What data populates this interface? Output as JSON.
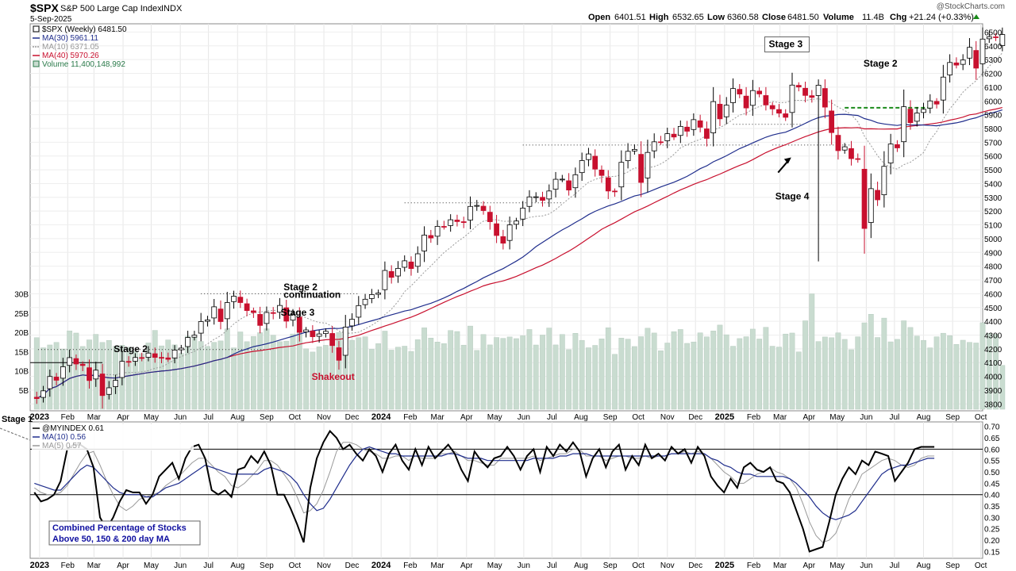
{
  "header": {
    "symbol": "$SPX",
    "name": "S&P 500 Large Cap Index",
    "exchange": "INDX",
    "date": "5-Sep-2025",
    "watermark": "@StockCharts.com",
    "open_label": "Open",
    "open": "6401.51",
    "high_label": "High",
    "high": "6532.65",
    "low_label": "Low",
    "low": "6360.58",
    "close_label": "Close",
    "close": "6481.50",
    "volume_label": "Volume",
    "volume": "11.4B",
    "chg_label": "Chg",
    "chg": "+21.24 (+0.33%)"
  },
  "colors": {
    "up": "#ffffff",
    "down": "#c8102e",
    "candle_edge": "#000000",
    "ma30": "#1f2d8c",
    "ma10": "#999999",
    "ma40": "#c8102e",
    "volume": "#c9dcd0",
    "stage2_line": "#1a8a1a",
    "ind_main": "#000000",
    "ind_ma10": "#1f2d8c",
    "ind_ma5": "#999999",
    "note_text": "#1010a0"
  },
  "chart_data": [
    {
      "type": "candlestick",
      "title": "$SPX S&P 500 Large Cap Index INDX",
      "legend": [
        {
          "label": "$SPX (Weekly) 6481.50",
          "color": "#000000"
        },
        {
          "label": "MA(30) 5961.11",
          "color": "#1f2d8c"
        },
        {
          "label": "MA(10) 6371.05",
          "color": "#999999"
        },
        {
          "label": "MA(40) 5970.26",
          "color": "#c8102e"
        },
        {
          "label": "Volume 11,400,148,992",
          "color": "#2a7a4a"
        }
      ],
      "legend_position": "top-left",
      "x_range": [
        "2022-12-23",
        "2025-10-03"
      ],
      "x_ticks": [
        {
          "label": "2023",
          "date": "2023-01-02",
          "bold": true
        },
        {
          "label": "Feb",
          "date": "2023-02-01"
        },
        {
          "label": "Mar",
          "date": "2023-03-01"
        },
        {
          "label": "Apr",
          "date": "2023-04-01"
        },
        {
          "label": "May",
          "date": "2023-05-01"
        },
        {
          "label": "Jun",
          "date": "2023-06-01"
        },
        {
          "label": "Jul",
          "date": "2023-07-01"
        },
        {
          "label": "Aug",
          "date": "2023-08-01"
        },
        {
          "label": "Sep",
          "date": "2023-09-01"
        },
        {
          "label": "Oct",
          "date": "2023-10-01"
        },
        {
          "label": "Nov",
          "date": "2023-11-01"
        },
        {
          "label": "Dec",
          "date": "2023-12-01"
        },
        {
          "label": "2024",
          "date": "2024-01-01",
          "bold": true
        },
        {
          "label": "Feb",
          "date": "2024-02-01"
        },
        {
          "label": "Mar",
          "date": "2024-03-01"
        },
        {
          "label": "Apr",
          "date": "2024-04-01"
        },
        {
          "label": "May",
          "date": "2024-05-01"
        },
        {
          "label": "Jun",
          "date": "2024-06-01"
        },
        {
          "label": "Jul",
          "date": "2024-07-01"
        },
        {
          "label": "Aug",
          "date": "2024-08-01"
        },
        {
          "label": "Sep",
          "date": "2024-09-01"
        },
        {
          "label": "Oct",
          "date": "2024-10-01"
        },
        {
          "label": "Nov",
          "date": "2024-11-01"
        },
        {
          "label": "Dec",
          "date": "2024-12-01"
        },
        {
          "label": "2025",
          "date": "2025-01-01",
          "bold": true
        },
        {
          "label": "Feb",
          "date": "2025-02-01"
        },
        {
          "label": "Mar",
          "date": "2025-03-01"
        },
        {
          "label": "Apr",
          "date": "2025-04-01"
        },
        {
          "label": "May",
          "date": "2025-05-01"
        },
        {
          "label": "Jun",
          "date": "2025-06-01"
        },
        {
          "label": "Jul",
          "date": "2025-07-01"
        },
        {
          "label": "Aug",
          "date": "2025-08-01"
        },
        {
          "label": "Sep",
          "date": "2025-09-01"
        },
        {
          "label": "Oct",
          "date": "2025-10-01"
        }
      ],
      "y_range": [
        3750,
        6560
      ],
      "y_ticks": [
        3800,
        3900,
        4000,
        4100,
        4200,
        4300,
        4400,
        4500,
        4600,
        4700,
        4800,
        4900,
        5000,
        5100,
        5200,
        5300,
        5400,
        5500,
        5600,
        5700,
        5800,
        5900,
        6000,
        6100,
        6200,
        6300,
        6400,
        6500
      ],
      "volume_ticks": [
        {
          "label": "5B",
          "value": 5
        },
        {
          "label": "10B",
          "value": 10
        },
        {
          "label": "15B",
          "value": 15
        },
        {
          "label": "20B",
          "value": 20
        },
        {
          "label": "25B",
          "value": 25
        },
        {
          "label": "30B",
          "value": 30
        }
      ],
      "volume_max": 33,
      "x_start": "2022-12-30",
      "x_step_days": 7,
      "close": [
        3839,
        3895,
        3999,
        3972,
        4070,
        4136,
        4090,
        4079,
        3970,
        4045,
        3861,
        3917,
        3971,
        4109,
        4105,
        4137,
        4133,
        4169,
        4138,
        4136,
        4124,
        4191,
        4205,
        4282,
        4299,
        4398,
        4410,
        4505,
        4398,
        4536,
        4582,
        4536,
        4478,
        4464,
        4370,
        4464,
        4457,
        4515,
        4401,
        4450,
        4320,
        4337,
        4288,
        4308,
        4327,
        4224,
        4117,
        4358,
        4415,
        4514,
        4560,
        4594,
        4605,
        4769,
        4719,
        4784,
        4839,
        4783,
        4890,
        5026,
        5005,
        5089,
        5088,
        5137,
        5124,
        5117,
        5234,
        5241,
        5204,
        5123,
        5023,
        4967,
        5100,
        5128,
        5222,
        5303,
        5304,
        5278,
        5346,
        5431,
        5432,
        5353,
        5464,
        5567,
        5615,
        5505,
        5459,
        5346,
        5344,
        5554,
        5634,
        5648,
        5408,
        5626,
        5703,
        5702,
        5762,
        5738,
        5815,
        5780,
        5864,
        5809,
        5728,
        5995,
        5870,
        5969,
        6090,
        6050,
        5949,
        6075,
        6051,
        5971,
        5942,
        5911,
        5881,
        6115,
        6101,
        6040,
        6026,
        6114,
        5955,
        5770,
        5639,
        5667,
        5581,
        5580,
        5074,
        5363,
        5282,
        5525,
        5687,
        5659,
        5958,
        5842,
        5912,
        5939,
        6000,
        5977,
        6173,
        6279,
        6260,
        6297,
        6389,
        6238,
        6449,
        6466,
        6460,
        6482
      ],
      "ma30_last": 5961.11,
      "ma10_last": 6371.05,
      "ma40_last": 5970.26,
      "annotations": [
        {
          "text": "Stage 2",
          "date": "2023-03-22",
          "value": 4175
        },
        {
          "text": "Stage 2",
          "date": "2023-09-19",
          "value": 4625
        },
        {
          "text": "continuation",
          "date": "2023-09-19",
          "value": 4570
        },
        {
          "text": "Stage 3",
          "date": "2023-09-16",
          "value": 4440
        },
        {
          "text": "Shakeout",
          "date": "2023-10-19",
          "value": 3975
        },
        {
          "text": "Stage 3",
          "date": "2025-02-17",
          "value": 6390
        },
        {
          "text": "Stage 4",
          "date": "2025-02-24",
          "value": 5285
        },
        {
          "text": "Stage 2",
          "date": "2025-05-29",
          "value": 6250
        }
      ]
    },
    {
      "type": "line",
      "title": "Stage 1",
      "legend": [
        {
          "label": "@MYINDEX 0.61",
          "color": "#000000"
        },
        {
          "label": "MA(10) 0.56",
          "color": "#1f2d8c"
        },
        {
          "label": "MA(5) 0.57",
          "color": "#999999"
        }
      ],
      "note": [
        "Combined Percentage of Stocks",
        "Above 50, 150 & 200 day MA"
      ],
      "y_range": [
        0.12,
        0.72
      ],
      "y_ticks": [
        0.15,
        0.2,
        0.25,
        0.3,
        0.35,
        0.4,
        0.45,
        0.5,
        0.55,
        0.6,
        0.65,
        0.7
      ],
      "ref_lines": [
        0.6,
        0.4
      ],
      "values": [
        0.41,
        0.37,
        0.38,
        0.4,
        0.46,
        0.6,
        0.62,
        0.62,
        0.6,
        0.52,
        0.3,
        0.25,
        0.3,
        0.37,
        0.42,
        0.41,
        0.41,
        0.36,
        0.4,
        0.48,
        0.51,
        0.54,
        0.47,
        0.56,
        0.61,
        0.62,
        0.56,
        0.42,
        0.4,
        0.42,
        0.39,
        0.51,
        0.52,
        0.57,
        0.54,
        0.59,
        0.53,
        0.4,
        0.4,
        0.34,
        0.27,
        0.19,
        0.43,
        0.56,
        0.63,
        0.68,
        0.65,
        0.6,
        0.62,
        0.58,
        0.55,
        0.6,
        0.57,
        0.5,
        0.58,
        0.62,
        0.55,
        0.51,
        0.6,
        0.53,
        0.61,
        0.56,
        0.59,
        0.62,
        0.58,
        0.51,
        0.46,
        0.59,
        0.55,
        0.52,
        0.56,
        0.57,
        0.61,
        0.57,
        0.51,
        0.57,
        0.6,
        0.5,
        0.61,
        0.57,
        0.62,
        0.59,
        0.63,
        0.59,
        0.48,
        0.56,
        0.6,
        0.52,
        0.59,
        0.62,
        0.51,
        0.57,
        0.53,
        0.62,
        0.56,
        0.58,
        0.55,
        0.61,
        0.58,
        0.6,
        0.54,
        0.61,
        0.57,
        0.48,
        0.44,
        0.41,
        0.47,
        0.43,
        0.52,
        0.54,
        0.51,
        0.5,
        0.52,
        0.46,
        0.45,
        0.41,
        0.33,
        0.25,
        0.15,
        0.16,
        0.17,
        0.28,
        0.4,
        0.47,
        0.52,
        0.49,
        0.55,
        0.53,
        0.59,
        0.58,
        0.57,
        0.46,
        0.5,
        0.54,
        0.6,
        0.61,
        0.61,
        0.61
      ],
      "ma10": [
        0.45,
        0.44,
        0.43,
        0.42,
        0.42,
        0.45,
        0.48,
        0.51,
        0.53,
        0.52,
        0.49,
        0.46,
        0.43,
        0.41,
        0.4,
        0.4,
        0.4,
        0.39,
        0.39,
        0.41,
        0.43,
        0.44,
        0.45,
        0.47,
        0.49,
        0.51,
        0.53,
        0.52,
        0.51,
        0.5,
        0.49,
        0.49,
        0.49,
        0.49,
        0.49,
        0.51,
        0.52,
        0.51,
        0.5,
        0.48,
        0.45,
        0.4,
        0.36,
        0.33,
        0.34,
        0.38,
        0.43,
        0.48,
        0.53,
        0.57,
        0.6,
        0.61,
        0.6,
        0.59,
        0.58,
        0.58,
        0.57,
        0.57,
        0.57,
        0.57,
        0.57,
        0.57,
        0.57,
        0.58,
        0.58,
        0.57,
        0.56,
        0.56,
        0.56,
        0.55,
        0.55,
        0.55,
        0.55,
        0.55,
        0.55,
        0.55,
        0.56,
        0.56,
        0.56,
        0.56,
        0.57,
        0.57,
        0.58,
        0.58,
        0.58,
        0.57,
        0.57,
        0.57,
        0.57,
        0.57,
        0.57,
        0.57,
        0.57,
        0.57,
        0.57,
        0.57,
        0.57,
        0.58,
        0.58,
        0.58,
        0.58,
        0.58,
        0.58,
        0.56,
        0.55,
        0.53,
        0.52,
        0.5,
        0.49,
        0.49,
        0.48,
        0.48,
        0.48,
        0.48,
        0.48,
        0.47,
        0.45,
        0.42,
        0.39,
        0.35,
        0.32,
        0.3,
        0.29,
        0.3,
        0.31,
        0.33,
        0.37,
        0.41,
        0.45,
        0.49,
        0.51,
        0.52,
        0.53,
        0.53,
        0.54,
        0.55,
        0.56,
        0.56
      ],
      "ma5": [
        0.43,
        0.41,
        0.4,
        0.4,
        0.41,
        0.44,
        0.49,
        0.54,
        0.58,
        0.59,
        0.53,
        0.46,
        0.4,
        0.35,
        0.33,
        0.35,
        0.38,
        0.39,
        0.4,
        0.41,
        0.44,
        0.46,
        0.48,
        0.51,
        0.54,
        0.56,
        0.56,
        0.53,
        0.5,
        0.48,
        0.44,
        0.43,
        0.45,
        0.48,
        0.51,
        0.55,
        0.55,
        0.53,
        0.49,
        0.45,
        0.39,
        0.32,
        0.33,
        0.36,
        0.42,
        0.5,
        0.59,
        0.63,
        0.63,
        0.62,
        0.6,
        0.59,
        0.58,
        0.56,
        0.56,
        0.57,
        0.57,
        0.55,
        0.57,
        0.56,
        0.56,
        0.56,
        0.58,
        0.58,
        0.59,
        0.57,
        0.55,
        0.55,
        0.54,
        0.53,
        0.53,
        0.56,
        0.56,
        0.56,
        0.56,
        0.56,
        0.57,
        0.55,
        0.56,
        0.57,
        0.58,
        0.58,
        0.6,
        0.6,
        0.57,
        0.57,
        0.57,
        0.55,
        0.56,
        0.57,
        0.57,
        0.56,
        0.56,
        0.57,
        0.56,
        0.57,
        0.57,
        0.58,
        0.58,
        0.59,
        0.58,
        0.59,
        0.58,
        0.56,
        0.53,
        0.5,
        0.48,
        0.45,
        0.45,
        0.47,
        0.49,
        0.5,
        0.52,
        0.5,
        0.49,
        0.47,
        0.43,
        0.36,
        0.28,
        0.22,
        0.19,
        0.2,
        0.23,
        0.3,
        0.38,
        0.43,
        0.49,
        0.51,
        0.53,
        0.55,
        0.56,
        0.55,
        0.53,
        0.52,
        0.53,
        0.56,
        0.57,
        0.57
      ]
    }
  ]
}
